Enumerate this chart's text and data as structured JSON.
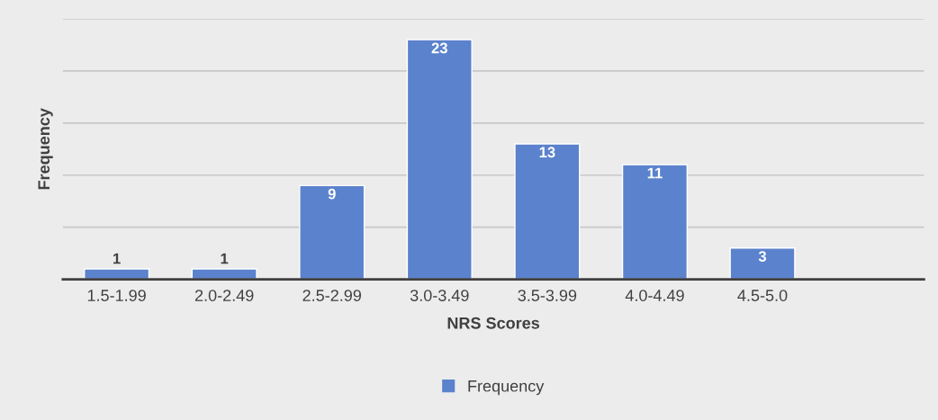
{
  "chart_data": {
    "type": "bar",
    "xlabel": "NRS Scores",
    "ylabel": "Frequency",
    "categories": [
      "1.5-1.99",
      "2.0-2.49",
      "2.5-2.99",
      "3.0-3.49",
      "3.5-3.99",
      "4.0-4.49",
      "4.5-5.0",
      null
    ],
    "series": [
      {
        "name": "Frequency",
        "color": "#5b82cc",
        "values": [
          1,
          1,
          9,
          23,
          13,
          11,
          3,
          null
        ]
      }
    ],
    "ylim": [
      0,
      25
    ],
    "yticks": [
      {
        "value": 0,
        "label": null
      },
      {
        "value": 5,
        "label": null
      },
      {
        "value": 10,
        "label": null
      },
      {
        "value": 15,
        "label": null
      },
      {
        "value": 20,
        "label": null
      },
      {
        "value": 25,
        "label": null
      }
    ],
    "tick_labels": "x",
    "grid": "y",
    "legend": "bottom",
    "data_labels": true
  }
}
